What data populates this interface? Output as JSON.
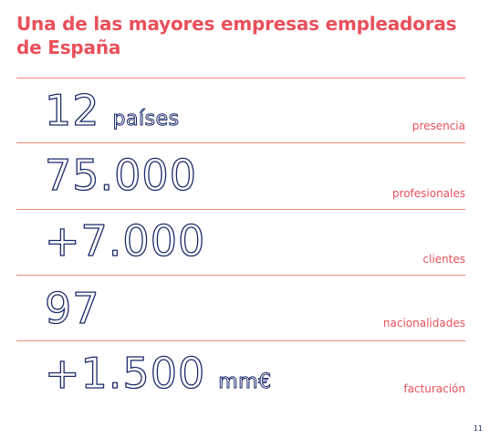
{
  "title": "Una de las mayores empresas empleadoras de España",
  "stats": [
    {
      "value": "12",
      "unit": "países",
      "label": "presencia"
    },
    {
      "value": "75.000",
      "unit": "",
      "label": "profesionales"
    },
    {
      "value": "+7.000",
      "unit": "",
      "label": "clientes"
    },
    {
      "value": "97",
      "unit": "",
      "label": "nacionalidades"
    },
    {
      "value": "+1.500",
      "unit": "mm€",
      "label": "facturación"
    }
  ],
  "page_number": "11",
  "colors": {
    "accent": "#e8505b",
    "rule": "#ef8a7a",
    "figure_outline": "#1d2b6b"
  }
}
